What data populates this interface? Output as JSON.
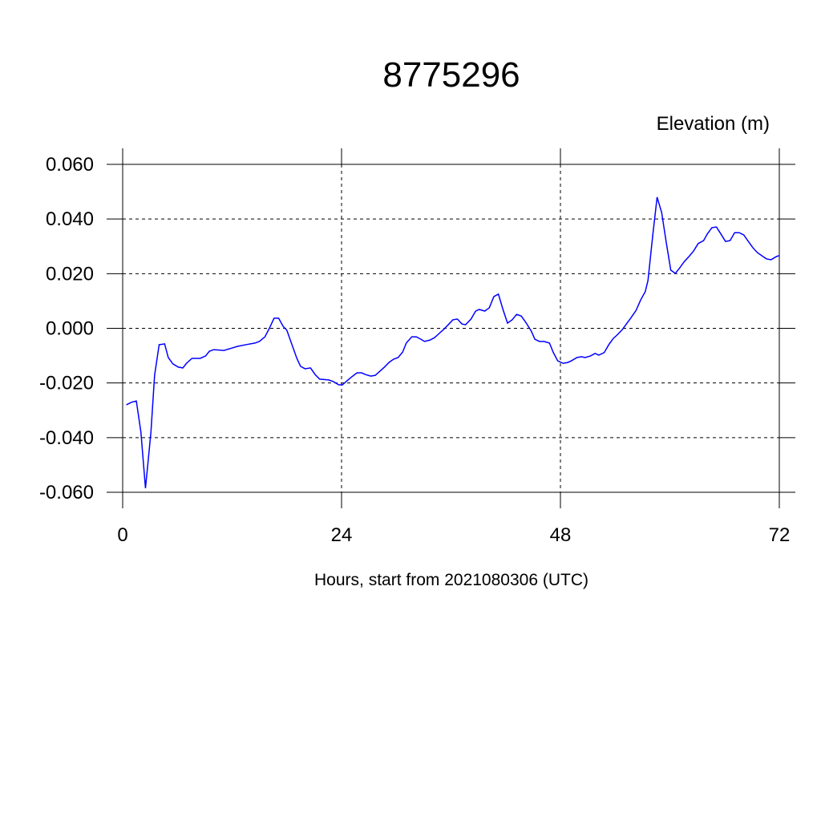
{
  "chart_data": {
    "type": "line",
    "title": "8775296",
    "ylabel": "Elevation (m)",
    "xlabel": "Hours, start from 2021080306 (UTC)",
    "xlim": [
      0,
      72
    ],
    "xticks": [
      0,
      24,
      48,
      72
    ],
    "ylim": [
      -0.06,
      0.06
    ],
    "yticks": [
      {
        "value": -0.06,
        "label": "-0.060"
      },
      {
        "value": -0.04,
        "label": "-0.040"
      },
      {
        "value": -0.02,
        "label": "-0.020"
      },
      {
        "value": 0,
        "label": "0.000"
      },
      {
        "value": 0.02,
        "label": "0.020"
      },
      {
        "value": 0.04,
        "label": "0.040"
      },
      {
        "value": 0.06,
        "label": "0.060"
      }
    ],
    "grid": true,
    "series": [
      {
        "color": "#0000ff",
        "x": [
          0.4,
          1.0,
          1.5,
          2.0,
          2.5,
          3.1,
          3.5,
          4.0,
          4.6,
          5.0,
          5.5,
          6.1,
          6.6,
          7.0,
          7.6,
          8.1,
          8.5,
          9.1,
          9.5,
          10.0,
          11.1,
          12.0,
          12.6,
          13.5,
          14.5,
          15.0,
          15.6,
          16.1,
          16.6,
          17.1,
          17.6,
          18.0,
          18.5,
          19.1,
          19.5,
          20.0,
          20.6,
          21.1,
          21.6,
          22.6,
          23.1,
          23.7,
          24.1,
          24.6,
          25.1,
          25.7,
          26.2,
          26.6,
          27.2,
          27.7,
          28.1,
          28.7,
          29.2,
          29.7,
          30.2,
          30.7,
          31.1,
          31.7,
          32.2,
          32.7,
          33.1,
          33.7,
          34.2,
          34.6,
          35.2,
          35.7,
          36.2,
          36.7,
          37.2,
          37.6,
          38.2,
          38.7,
          39.1,
          39.7,
          40.2,
          40.7,
          41.2,
          41.7,
          42.2,
          42.7,
          43.2,
          43.7,
          44.2,
          44.8,
          45.2,
          45.7,
          46.2,
          46.8,
          47.2,
          47.7,
          48.3,
          48.8,
          49.2,
          49.8,
          50.3,
          50.7,
          51.3,
          51.8,
          52.2,
          52.8,
          53.3,
          53.8,
          54.2,
          54.8,
          55.3,
          55.7,
          56.3,
          56.8,
          57.3,
          57.6,
          58.1,
          58.6,
          59.1,
          59.6,
          60.1,
          60.6,
          61.1,
          61.6,
          62.1,
          62.6,
          63.1,
          63.7,
          64.1,
          64.6,
          65.1,
          65.6,
          66.1,
          66.6,
          67.1,
          67.6,
          68.1,
          68.6,
          69.1,
          69.6,
          70.2,
          70.6,
          71.1,
          71.7,
          72.0
        ],
        "values": [
          -0.028,
          -0.027,
          -0.0266,
          -0.038,
          -0.0585,
          -0.038,
          -0.0172,
          -0.006,
          -0.0057,
          -0.0107,
          -0.013,
          -0.0142,
          -0.0145,
          -0.0128,
          -0.011,
          -0.011,
          -0.011,
          -0.0101,
          -0.0084,
          -0.0078,
          -0.0081,
          -0.0072,
          -0.0066,
          -0.006,
          -0.0054,
          -0.0048,
          -0.0031,
          0.0001,
          0.0037,
          0.0037,
          0.0007,
          -0.0007,
          -0.0054,
          -0.011,
          -0.0139,
          -0.0148,
          -0.0145,
          -0.0169,
          -0.0186,
          -0.0189,
          -0.0195,
          -0.0207,
          -0.0207,
          -0.0192,
          -0.0178,
          -0.0163,
          -0.0163,
          -0.0169,
          -0.0175,
          -0.0172,
          -0.016,
          -0.0142,
          -0.0125,
          -0.0113,
          -0.0107,
          -0.0087,
          -0.0054,
          -0.0031,
          -0.0031,
          -0.004,
          -0.0048,
          -0.0043,
          -0.0034,
          -0.0022,
          -0.0004,
          0.0013,
          0.0031,
          0.0034,
          0.0016,
          0.0013,
          0.0034,
          0.0063,
          0.0069,
          0.0063,
          0.0075,
          0.0116,
          0.0125,
          0.0069,
          0.0019,
          0.0031,
          0.0051,
          0.0045,
          0.0022,
          -0.001,
          -0.004,
          -0.0048,
          -0.0048,
          -0.0054,
          -0.0087,
          -0.0119,
          -0.0128,
          -0.0125,
          -0.0119,
          -0.0107,
          -0.0104,
          -0.0107,
          -0.0101,
          -0.0092,
          -0.0098,
          -0.0089,
          -0.006,
          -0.0037,
          -0.0025,
          -0.0004,
          0.0019,
          0.0037,
          0.0066,
          0.0104,
          0.0134,
          0.0175,
          0.0333,
          0.048,
          0.0424,
          0.0315,
          0.0213,
          0.0201,
          0.0222,
          0.0245,
          0.0263,
          0.0283,
          0.031,
          0.0321,
          0.0345,
          0.0368,
          0.0371,
          0.0345,
          0.0318,
          0.0321,
          0.035,
          0.035,
          0.0342,
          0.0318,
          0.0295,
          0.0277,
          0.0263,
          0.0254,
          0.0251,
          0.0263,
          0.0266
        ]
      }
    ]
  }
}
